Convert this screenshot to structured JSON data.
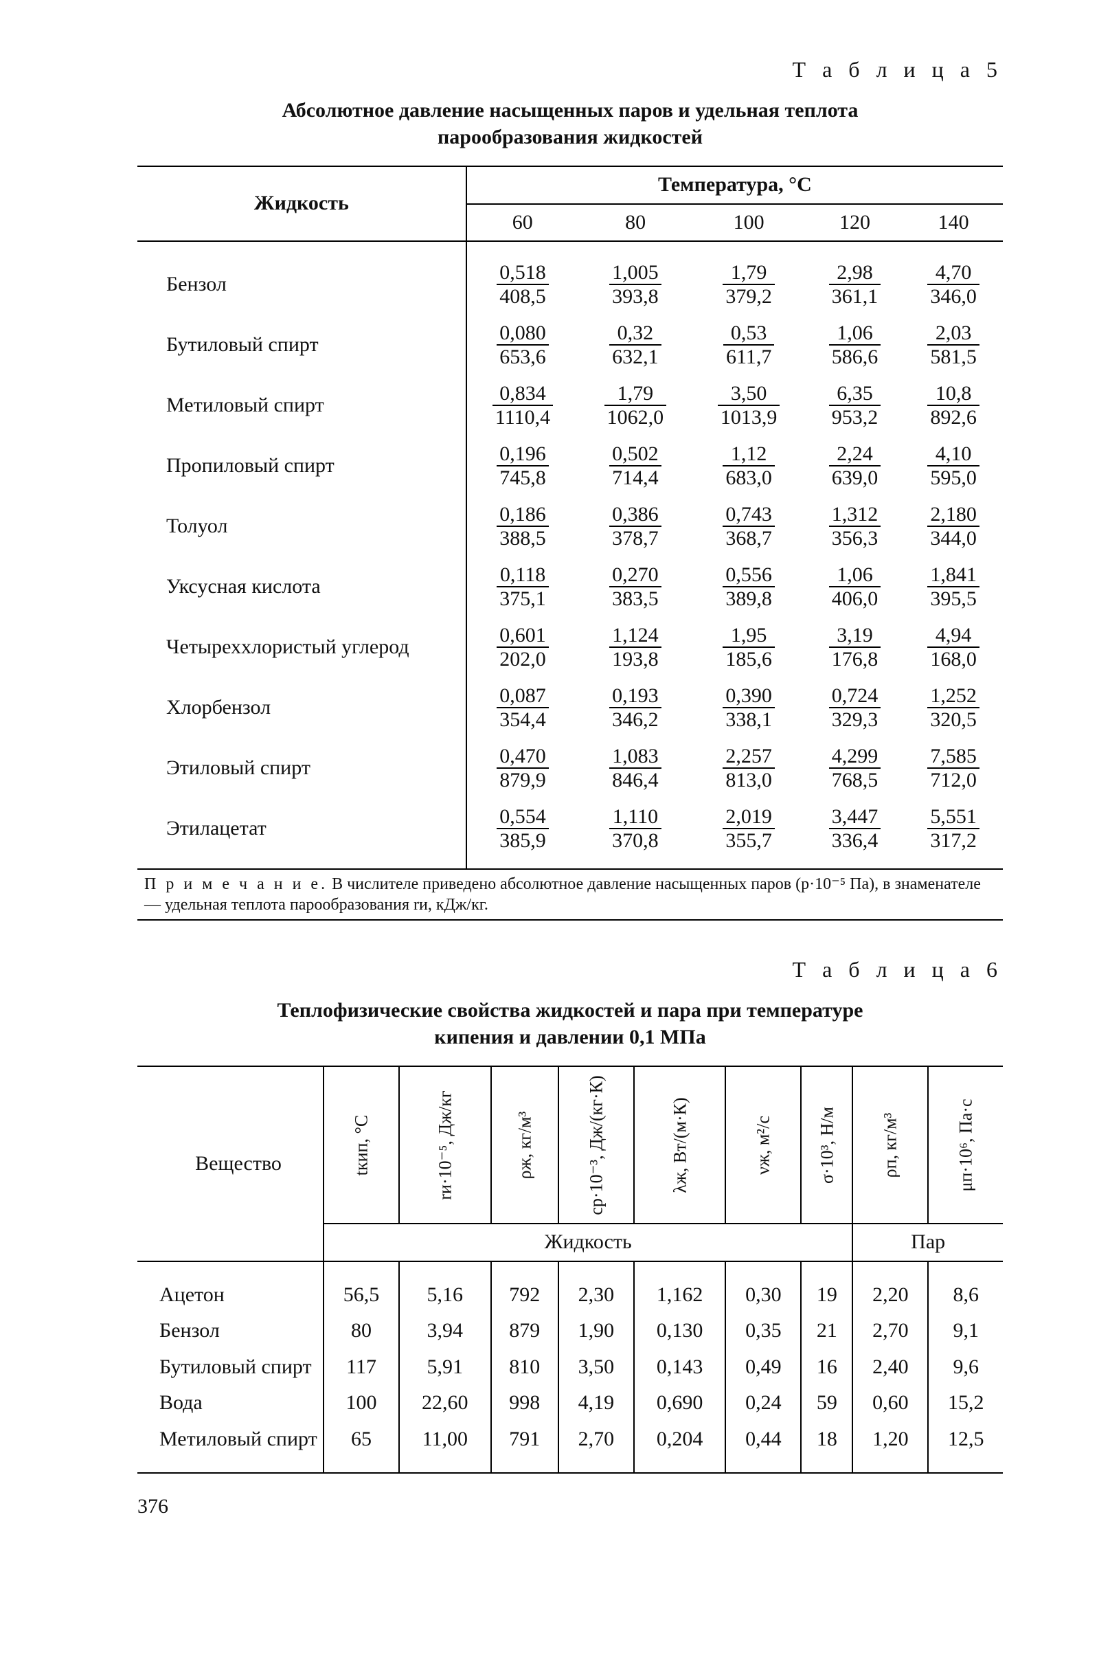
{
  "table5": {
    "label": "Т а б л и ц а  5",
    "title": "Абсолютное давление насыщенных паров и удельная теплота парообразования жидкостей",
    "liquid_header": "Жидкость",
    "temps_header": "Температура, °С",
    "temp_cols": [
      "60",
      "80",
      "100",
      "120",
      "140"
    ],
    "rows": [
      {
        "name": "Бензол",
        "cells": [
          [
            "0,518",
            "408,5"
          ],
          [
            "1,005",
            "393,8"
          ],
          [
            "1,79",
            "379,2"
          ],
          [
            "2,98",
            "361,1"
          ],
          [
            "4,70",
            "346,0"
          ]
        ]
      },
      {
        "name": "Бутиловый спирт",
        "cells": [
          [
            "0,080",
            "653,6"
          ],
          [
            "0,32",
            "632,1"
          ],
          [
            "0,53",
            "611,7"
          ],
          [
            "1,06",
            "586,6"
          ],
          [
            "2,03",
            "581,5"
          ]
        ]
      },
      {
        "name": "Метиловый спирт",
        "cells": [
          [
            "0,834",
            "1110,4"
          ],
          [
            "1,79",
            "1062,0"
          ],
          [
            "3,50",
            "1013,9"
          ],
          [
            "6,35",
            "953,2"
          ],
          [
            "10,8",
            "892,6"
          ]
        ]
      },
      {
        "name": "Пропиловый спирт",
        "cells": [
          [
            "0,196",
            "745,8"
          ],
          [
            "0,502",
            "714,4"
          ],
          [
            "1,12",
            "683,0"
          ],
          [
            "2,24",
            "639,0"
          ],
          [
            "4,10",
            "595,0"
          ]
        ]
      },
      {
        "name": "Толуол",
        "cells": [
          [
            "0,186",
            "388,5"
          ],
          [
            "0,386",
            "378,7"
          ],
          [
            "0,743",
            "368,7"
          ],
          [
            "1,312",
            "356,3"
          ],
          [
            "2,180",
            "344,0"
          ]
        ]
      },
      {
        "name": "Уксусная кислота",
        "cells": [
          [
            "0,118",
            "375,1"
          ],
          [
            "0,270",
            "383,5"
          ],
          [
            "0,556",
            "389,8"
          ],
          [
            "1,06",
            "406,0"
          ],
          [
            "1,841",
            "395,5"
          ]
        ]
      },
      {
        "name": "Четыреххлористый уг­лерод",
        "cells": [
          [
            "0,601",
            "202,0"
          ],
          [
            "1,124",
            "193,8"
          ],
          [
            "1,95",
            "185,6"
          ],
          [
            "3,19",
            "176,8"
          ],
          [
            "4,94",
            "168,0"
          ]
        ]
      },
      {
        "name": "Хлорбензол",
        "cells": [
          [
            "0,087",
            "354,4"
          ],
          [
            "0,193",
            "346,2"
          ],
          [
            "0,390",
            "338,1"
          ],
          [
            "0,724",
            "329,3"
          ],
          [
            "1,252",
            "320,5"
          ]
        ]
      },
      {
        "name": "Этиловый спирт",
        "cells": [
          [
            "0,470",
            "879,9"
          ],
          [
            "1,083",
            "846,4"
          ],
          [
            "2,257",
            "813,0"
          ],
          [
            "4,299",
            "768,5"
          ],
          [
            "7,585",
            "712,0"
          ]
        ]
      },
      {
        "name": "Этилацетат",
        "cells": [
          [
            "0,554",
            "385,9"
          ],
          [
            "1,110",
            "370,8"
          ],
          [
            "2,019",
            "355,7"
          ],
          [
            "3,447",
            "336,4"
          ],
          [
            "5,551",
            "317,2"
          ]
        ]
      }
    ],
    "note_lead": "П р и м е ч а н и е.",
    "note_body": " В числителе приведено абсолютное давление насыщенных паров (p·10⁻⁵ Па), в знаменателе — удельная теплота парообразования rи, кДж/кг."
  },
  "table6": {
    "label": "Т а б л и ц а  6",
    "title": "Теплофизические свойства жидкостей и пара при температуре кипения и давлении 0,1 МПа",
    "substance_header": "Вещество",
    "liquid_subheader": "Жидкость",
    "vapor_subheader": "Пар",
    "col_headers": [
      "tкип, °С",
      "rи·10⁻⁵, Дж/кг",
      "ρж, кг/м³",
      "cр·10⁻³, Дж/(кг·К)",
      "λж, Вт/(м·К)",
      "νж, м²/с",
      "σ·10³, Н/м",
      "ρп, кг/м³",
      "μп·10⁶, Па·с"
    ],
    "rows": [
      {
        "name": "Ацетон",
        "v": [
          "56,5",
          "5,16",
          "792",
          "2,30",
          "1,162",
          "0,30",
          "19",
          "2,20",
          "8,6"
        ]
      },
      {
        "name": "Бензол",
        "v": [
          "80",
          "3,94",
          "879",
          "1,90",
          "0,130",
          "0,35",
          "21",
          "2,70",
          "9,1"
        ]
      },
      {
        "name": "Бутиловый спирт",
        "v": [
          "117",
          "5,91",
          "810",
          "3,50",
          "0,143",
          "0,49",
          "16",
          "2,40",
          "9,6"
        ]
      },
      {
        "name": "Вода",
        "v": [
          "100",
          "22,60",
          "998",
          "4,19",
          "0,690",
          "0,24",
          "59",
          "0,60",
          "15,2"
        ]
      },
      {
        "name": "Метиловый спирт",
        "v": [
          "65",
          "11,00",
          "791",
          "2,70",
          "0,204",
          "0,44",
          "18",
          "1,20",
          "12,5"
        ]
      }
    ]
  },
  "page_number": "376"
}
